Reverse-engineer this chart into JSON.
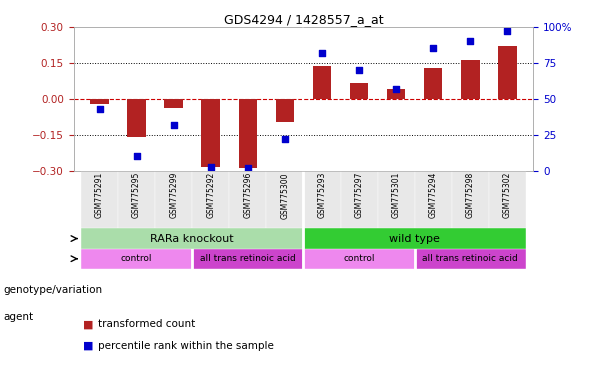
{
  "title": "GDS4294 / 1428557_a_at",
  "samples": [
    "GSM775291",
    "GSM775295",
    "GSM775299",
    "GSM775292",
    "GSM775296",
    "GSM775300",
    "GSM775293",
    "GSM775297",
    "GSM775301",
    "GSM775294",
    "GSM775298",
    "GSM775302"
  ],
  "bar_values": [
    -0.02,
    -0.16,
    -0.04,
    -0.285,
    -0.29,
    -0.095,
    0.135,
    0.065,
    0.04,
    0.13,
    0.16,
    0.22
  ],
  "percentile_values": [
    43,
    10,
    32,
    3,
    2,
    22,
    82,
    70,
    57,
    85,
    90,
    97
  ],
  "ylim_left": [
    -0.3,
    0.3
  ],
  "ylim_right": [
    0,
    100
  ],
  "yticks_left": [
    -0.3,
    -0.15,
    0,
    0.15,
    0.3
  ],
  "yticks_right": [
    0,
    25,
    50,
    75,
    100
  ],
  "bar_color": "#b22222",
  "scatter_color": "#0000cd",
  "hline_color": "#cc0000",
  "dotted_color": "black",
  "bg_color": "#ffffff",
  "separator_color": "#cccccc",
  "genotype_groups": [
    {
      "label": "RARa knockout",
      "start": 0,
      "end": 5,
      "color": "#aaddaa"
    },
    {
      "label": "wild type",
      "start": 6,
      "end": 11,
      "color": "#33cc33"
    }
  ],
  "agent_colors": [
    "#ee88ee",
    "#cc44cc",
    "#ee88ee",
    "#cc44cc"
  ],
  "agent_groups": [
    {
      "label": "control",
      "start": 0,
      "end": 2
    },
    {
      "label": "all trans retinoic acid",
      "start": 3,
      "end": 5
    },
    {
      "label": "control",
      "start": 6,
      "end": 8
    },
    {
      "label": "all trans retinoic acid",
      "start": 9,
      "end": 11
    }
  ],
  "legend_items": [
    {
      "label": "transformed count",
      "color": "#b22222"
    },
    {
      "label": "percentile rank within the sample",
      "color": "#0000cd"
    }
  ],
  "genotype_label": "genotype/variation",
  "agent_label": "agent",
  "bar_width": 0.5,
  "tick_label_fontsize": 6.5,
  "annotation_fontsize": 8.0,
  "legend_fontsize": 7.5
}
